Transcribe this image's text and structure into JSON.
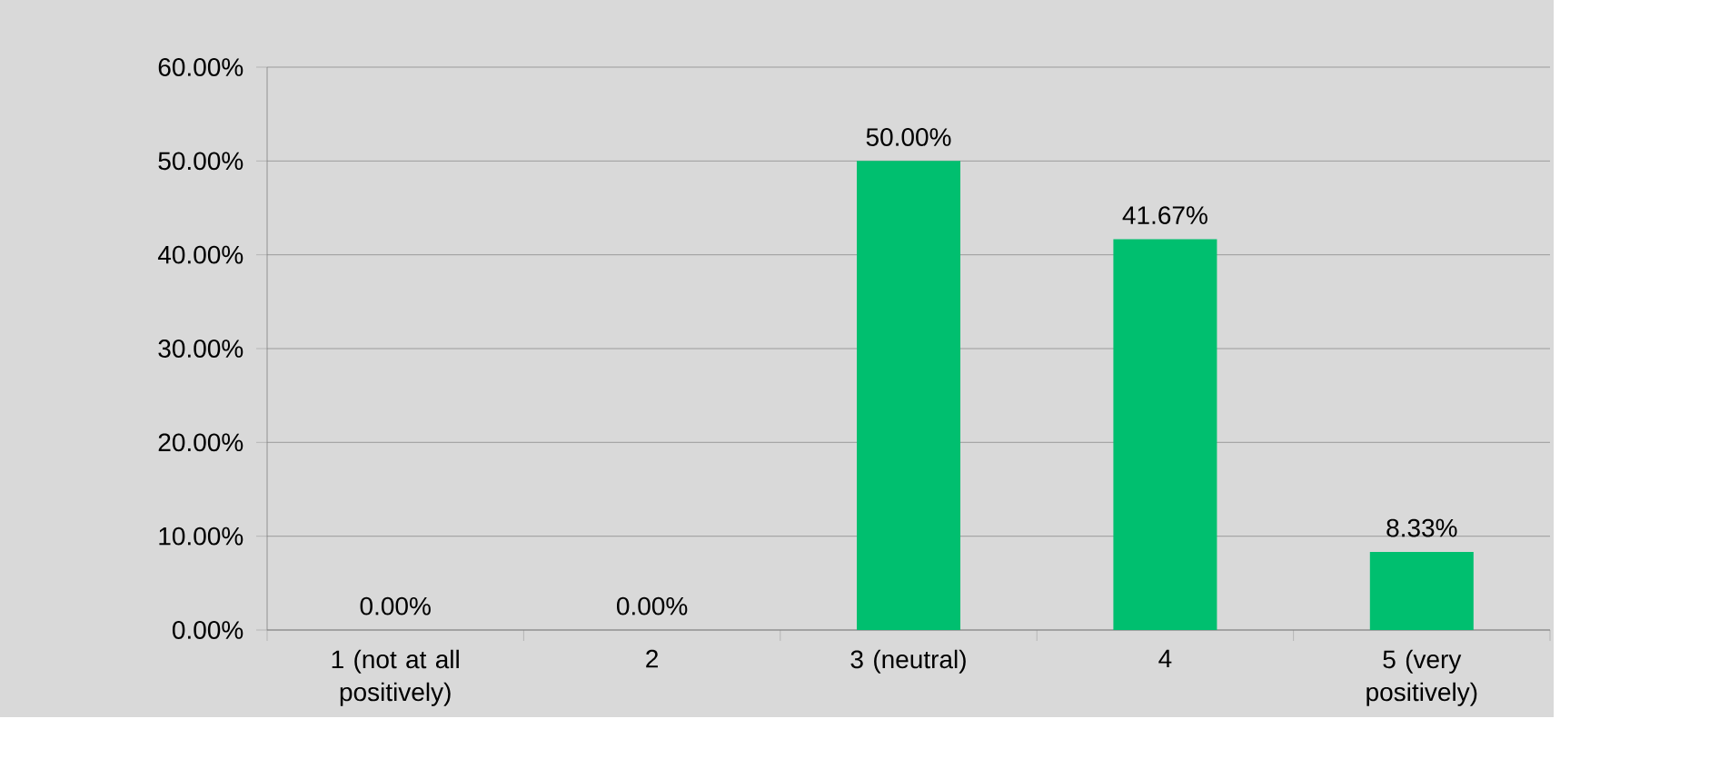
{
  "chart_data": {
    "type": "bar",
    "categories": [
      "1 (not at all positively)",
      "2",
      "3 (neutral)",
      "4",
      "5 (very positively)"
    ],
    "values": [
      0,
      0,
      50,
      41.67,
      8.33
    ],
    "value_labels": [
      "0.00%",
      "0.00%",
      "50.00%",
      "41.67%",
      "8.33%"
    ],
    "color": "#00bf6f",
    "ylim": [
      0,
      60
    ],
    "yticks": [
      {
        "value": 0,
        "label": "0.00%"
      },
      {
        "value": 10,
        "label": "10.00%"
      },
      {
        "value": 20,
        "label": "20.00%"
      },
      {
        "value": 30,
        "label": "30.00%"
      },
      {
        "value": 40,
        "label": "40.00%"
      },
      {
        "value": 50,
        "label": "50.00%"
      },
      {
        "value": 60,
        "label": "60.00%"
      }
    ],
    "grid": "y"
  }
}
